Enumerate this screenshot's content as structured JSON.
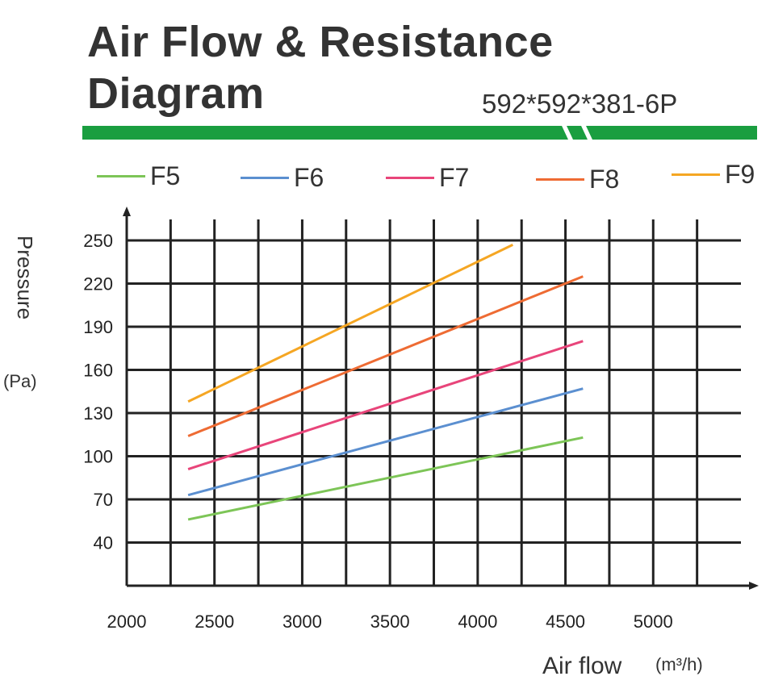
{
  "title_line1": "Air Flow & Resistance",
  "title_line2": "Diagram",
  "model": "592*592*381-6P",
  "colors": {
    "accent_bar": "#1a9e40"
  },
  "chart_data": {
    "type": "line",
    "xlabel": "Air flow",
    "xunit": "(m³/h)",
    "ylabel": "Pressure",
    "yunit": "(Pa)",
    "xlim": [
      2000,
      5500
    ],
    "ylim": [
      10,
      250
    ],
    "x_ticks": [
      2000,
      2500,
      3000,
      3500,
      4000,
      4500,
      5000
    ],
    "y_ticks": [
      40,
      70,
      100,
      130,
      160,
      190,
      220,
      250
    ],
    "grid": true,
    "legend_position": "top",
    "series": [
      {
        "name": "F5",
        "color": "#7dc557",
        "x": [
          2350,
          4600
        ],
        "y": [
          56,
          113
        ]
      },
      {
        "name": "F6",
        "color": "#5b8fd0",
        "x": [
          2350,
          4600
        ],
        "y": [
          73,
          147
        ]
      },
      {
        "name": "F7",
        "color": "#e8457a",
        "x": [
          2350,
          4600
        ],
        "y": [
          91,
          180
        ]
      },
      {
        "name": "F8",
        "color": "#ee6b33",
        "x": [
          2350,
          4600
        ],
        "y": [
          114,
          225
        ]
      },
      {
        "name": "F9",
        "color": "#f5a623",
        "x": [
          2350,
          4200
        ],
        "y": [
          138,
          247
        ]
      }
    ]
  }
}
